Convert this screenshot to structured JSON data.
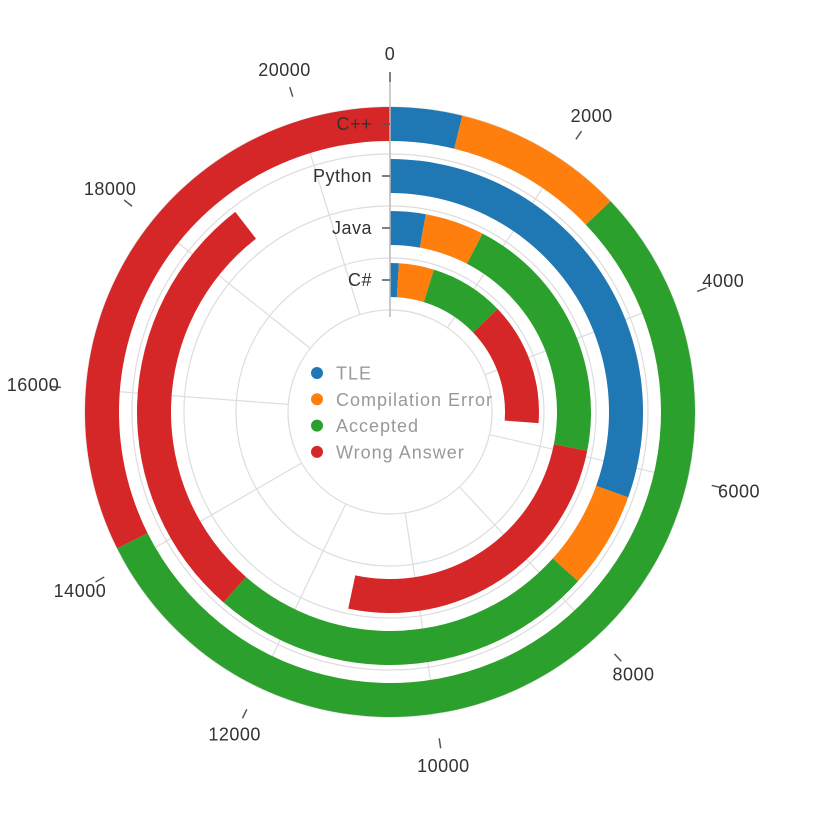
{
  "chart_data": {
    "type": "bar",
    "subtype": "radial-stacked-bar",
    "categories": [
      "C++",
      "Python",
      "Java",
      "C#"
    ],
    "series": [
      {
        "name": "TLE",
        "color": "#1f77b4",
        "values": [
          800,
          6400,
          600,
          200
        ]
      },
      {
        "name": "Compilation Error",
        "color": "#ff7f0e",
        "values": [
          1900,
          1300,
          1000,
          800
        ]
      },
      {
        "name": "Accepted",
        "color": "#2ca02c",
        "values": [
          11500,
          5200,
          4300,
          1700
        ]
      },
      {
        "name": "Wrong Answer",
        "color": "#d62728",
        "values": [
          6800,
          5900,
          5300,
          2800
        ]
      }
    ],
    "angular_axis": {
      "range": [
        0,
        21000
      ],
      "ticks": [
        0,
        2000,
        4000,
        6000,
        8000,
        10000,
        12000,
        14000,
        16000,
        18000,
        20000
      ]
    },
    "grid": true,
    "legend_position": "center"
  }
}
